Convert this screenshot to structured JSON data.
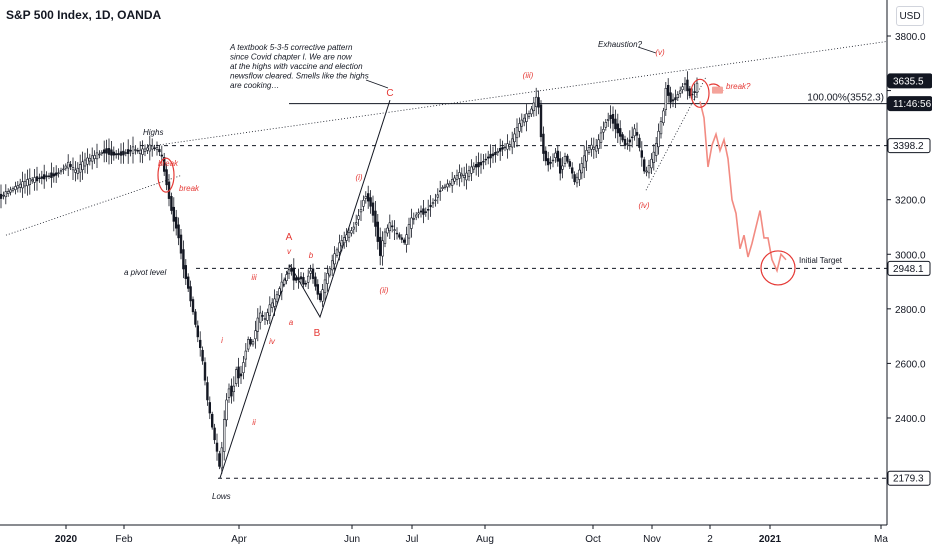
{
  "header": {
    "title": "S&P 500 Index, 1D, OANDA",
    "currency_button": "USD"
  },
  "colors": {
    "candle": "#131722",
    "wave_label": "#e53935",
    "projection": "#f28b82",
    "axis_text": "#131722"
  },
  "chart_data": {
    "type": "candlestick",
    "y_axis": {
      "range": [
        2080,
        3930
      ],
      "ticks": [
        2400.0,
        2600.0,
        2800.0,
        3000.0,
        3200.0,
        3400.0,
        3600.0,
        3800.0
      ],
      "tick_labels": [
        "2400.0",
        "2600.0",
        "2800.0",
        "3000.0",
        "3200.0",
        "",
        "",
        "3800.0"
      ],
      "price_tags": [
        {
          "value": 3635.5,
          "label": "3635.5",
          "style": "dark"
        },
        {
          "value": 3552.3,
          "label": "11:46:56",
          "style": "dark"
        },
        {
          "value": 3398.2,
          "label": "3398.2",
          "style": "light"
        },
        {
          "value": 2948.1,
          "label": "2948.1",
          "style": "light"
        },
        {
          "value": 2179.3,
          "label": "2179.3",
          "style": "light"
        }
      ]
    },
    "x_axis": {
      "tick_labels": [
        "2020",
        "Feb",
        "Apr",
        "Jun",
        "Jul",
        "Aug",
        "Oct",
        "Nov",
        "2",
        "2021",
        "Ma"
      ]
    },
    "price_path": [
      [
        0,
        3210
      ],
      [
        15,
        3245
      ],
      [
        30,
        3270
      ],
      [
        45,
        3285
      ],
      [
        55,
        3292
      ],
      [
        62,
        3310
      ],
      [
        68,
        3332
      ],
      [
        75,
        3300
      ],
      [
        85,
        3340
      ],
      [
        95,
        3360
      ],
      [
        105,
        3380
      ],
      [
        115,
        3365
      ],
      [
        125,
        3372
      ],
      [
        133,
        3385
      ],
      [
        140,
        3374
      ],
      [
        150,
        3393
      ],
      [
        158,
        3386
      ],
      [
        162,
        3350
      ],
      [
        166,
        3270
      ],
      [
        172,
        3150
      ],
      [
        178,
        3080
      ],
      [
        183,
        2960
      ],
      [
        188,
        2880
      ],
      [
        193,
        2790
      ],
      [
        198,
        2690
      ],
      [
        203,
        2600
      ],
      [
        207,
        2470
      ],
      [
        212,
        2370
      ],
      [
        216,
        2290
      ],
      [
        220,
        2210
      ],
      [
        224,
        2380
      ],
      [
        228,
        2520
      ],
      [
        232,
        2480
      ],
      [
        236,
        2580
      ],
      [
        240,
        2540
      ],
      [
        244,
        2620
      ],
      [
        248,
        2690
      ],
      [
        252,
        2660
      ],
      [
        256,
        2740
      ],
      [
        260,
        2780
      ],
      [
        265,
        2760
      ],
      [
        270,
        2810
      ],
      [
        275,
        2830
      ],
      [
        280,
        2880
      ],
      [
        285,
        2910
      ],
      [
        290,
        2955
      ],
      [
        295,
        2900
      ],
      [
        300,
        2920
      ],
      [
        305,
        2880
      ],
      [
        310,
        2950
      ],
      [
        315,
        2890
      ],
      [
        320,
        2830
      ],
      [
        325,
        2900
      ],
      [
        330,
        2950
      ],
      [
        335,
        3000
      ],
      [
        340,
        3040
      ],
      [
        345,
        3060
      ],
      [
        350,
        3080
      ],
      [
        355,
        3110
      ],
      [
        360,
        3160
      ],
      [
        365,
        3220
      ],
      [
        370,
        3190
      ],
      [
        375,
        3120
      ],
      [
        380,
        3000
      ],
      [
        385,
        3080
      ],
      [
        390,
        3110
      ],
      [
        395,
        3080
      ],
      [
        400,
        3060
      ],
      [
        405,
        3040
      ],
      [
        410,
        3120
      ],
      [
        415,
        3140
      ],
      [
        420,
        3160
      ],
      [
        425,
        3150
      ],
      [
        430,
        3180
      ],
      [
        435,
        3200
      ],
      [
        440,
        3240
      ],
      [
        445,
        3250
      ],
      [
        450,
        3260
      ],
      [
        455,
        3280
      ],
      [
        460,
        3295
      ],
      [
        465,
        3280
      ],
      [
        470,
        3310
      ],
      [
        475,
        3325
      ],
      [
        480,
        3330
      ],
      [
        485,
        3350
      ],
      [
        490,
        3360
      ],
      [
        495,
        3370
      ],
      [
        500,
        3385
      ],
      [
        505,
        3395
      ],
      [
        510,
        3400
      ],
      [
        515,
        3440
      ],
      [
        520,
        3480
      ],
      [
        525,
        3500
      ],
      [
        530,
        3520
      ],
      [
        535,
        3560
      ],
      [
        538,
        3580
      ],
      [
        540,
        3460
      ],
      [
        543,
        3380
      ],
      [
        547,
        3330
      ],
      [
        552,
        3340
      ],
      [
        556,
        3380
      ],
      [
        560,
        3300
      ],
      [
        565,
        3360
      ],
      [
        570,
        3320
      ],
      [
        575,
        3260
      ],
      [
        580,
        3310
      ],
      [
        585,
        3360
      ],
      [
        590,
        3400
      ],
      [
        595,
        3380
      ],
      [
        600,
        3430
      ],
      [
        605,
        3480
      ],
      [
        610,
        3510
      ],
      [
        615,
        3470
      ],
      [
        620,
        3440
      ],
      [
        625,
        3400
      ],
      [
        630,
        3420
      ],
      [
        635,
        3460
      ],
      [
        640,
        3380
      ],
      [
        645,
        3290
      ],
      [
        650,
        3330
      ],
      [
        655,
        3380
      ],
      [
        660,
        3470
      ],
      [
        663,
        3510
      ],
      [
        666,
        3620
      ],
      [
        670,
        3560
      ],
      [
        675,
        3570
      ],
      [
        680,
        3600
      ],
      [
        685,
        3630
      ],
      [
        690,
        3580
      ],
      [
        695,
        3600
      ],
      [
        698,
        3635
      ]
    ],
    "projection_path": [
      [
        700,
        3560
      ],
      [
        704,
        3500
      ],
      [
        708,
        3320
      ],
      [
        712,
        3400
      ],
      [
        716,
        3440
      ],
      [
        720,
        3380
      ],
      [
        724,
        3420
      ],
      [
        728,
        3350
      ],
      [
        732,
        3200
      ],
      [
        736,
        3150
      ],
      [
        740,
        3020
      ],
      [
        744,
        3070
      ],
      [
        748,
        2990
      ],
      [
        752,
        3040
      ],
      [
        756,
        3100
      ],
      [
        760,
        3160
      ],
      [
        764,
        3060
      ],
      [
        768,
        3060
      ],
      [
        772,
        2980
      ],
      [
        777,
        2940
      ],
      [
        781,
        3000
      ],
      [
        786,
        2980
      ]
    ],
    "horizontal_levels": [
      {
        "value": 3552.3,
        "style": "solid",
        "label": "100.00%(3552.3)"
      },
      {
        "value": 3398.2,
        "style": "dashed"
      },
      {
        "value": 2948.1,
        "style": "dashed"
      },
      {
        "value": 2179.3,
        "style": "dashed"
      }
    ],
    "annotations": {
      "commentary": "A textbook 5-3-5 corrective pattern since Covid chapter I. We are now at the highs with vaccine and election newsflow cleared. Smells like the highs are cooking…",
      "commentary_lines": [
        "A textbook 5-3-5 corrective pattern",
        "since Covid chapter I. We are now",
        "at the highs with vaccine and election",
        "newsflow cleared. Smells like the highs",
        "are cooking…"
      ],
      "highs": "Highs",
      "lows": "Lows",
      "pivot_level": "a pivot level",
      "exhaustion": "Exhaustion?",
      "break_left": "break",
      "break_left_2": "break",
      "break_right": "break?",
      "initial_target": "Initial Target",
      "wave_labels": [
        "A",
        "B",
        "C",
        "v",
        "b",
        "a",
        "iii",
        "iv",
        "i",
        "ii",
        "(i)",
        "(ii)",
        "(iii)",
        "(iv)",
        "(v)"
      ]
    }
  }
}
